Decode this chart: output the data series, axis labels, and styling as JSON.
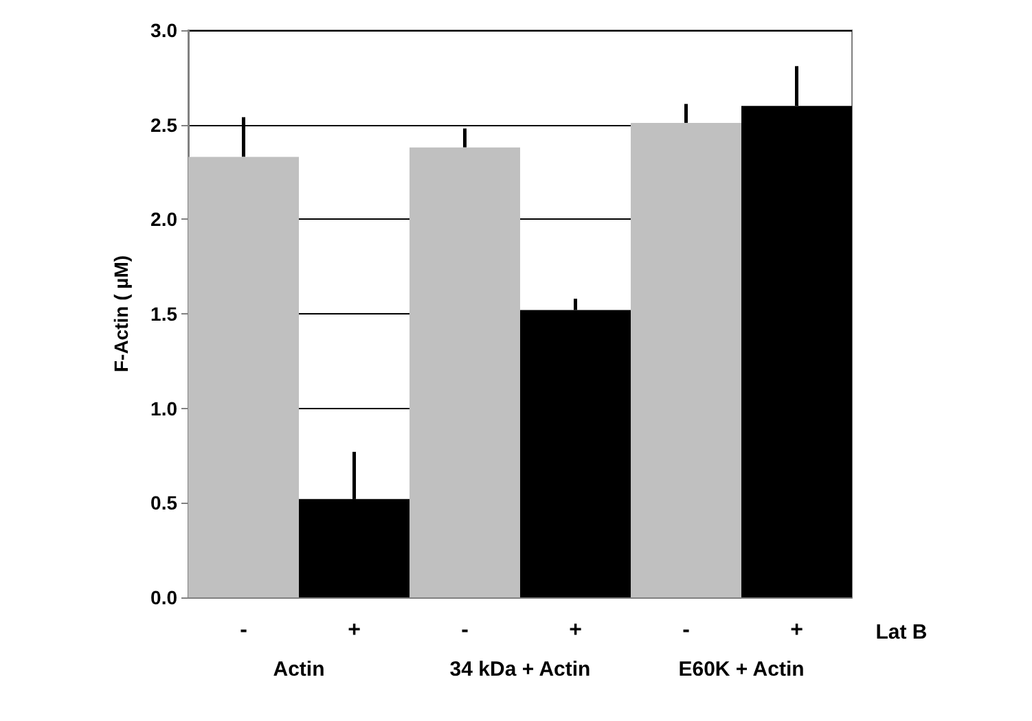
{
  "chart_data": {
    "type": "bar",
    "ylabel": "F-Actin ( µM)",
    "categories": [
      "-",
      "+",
      "-",
      "+",
      "-",
      "+"
    ],
    "values": [
      2.33,
      0.52,
      2.38,
      1.52,
      2.51,
      2.6
    ],
    "colors": [
      "#c0c0c0",
      "#000000",
      "#c0c0c0",
      "#000000",
      "#c0c0c0",
      "#000000"
    ],
    "errors": [
      [
        2.33,
        2.54
      ],
      [
        0.52,
        0.77
      ],
      [
        2.38,
        2.48
      ],
      [
        1.52,
        1.58
      ],
      [
        2.51,
        2.61
      ],
      [
        2.6,
        2.81
      ]
    ],
    "ylim": [
      0,
      3
    ],
    "yticks": [
      {
        "value": 0,
        "label": "0.0"
      },
      {
        "value": 0.5,
        "label": "0.5"
      },
      {
        "value": 1,
        "label": "1.0"
      },
      {
        "value": 1.5,
        "label": "1.5"
      },
      {
        "value": 2,
        "label": "2.0"
      },
      {
        "value": 2.5,
        "label": "2.5"
      },
      {
        "value": 3,
        "label": "3.0"
      }
    ],
    "grid": "y",
    "annotations": [
      "Actin",
      "34 kDa + Actin",
      "E60K + Actin",
      "Lat B"
    ]
  }
}
